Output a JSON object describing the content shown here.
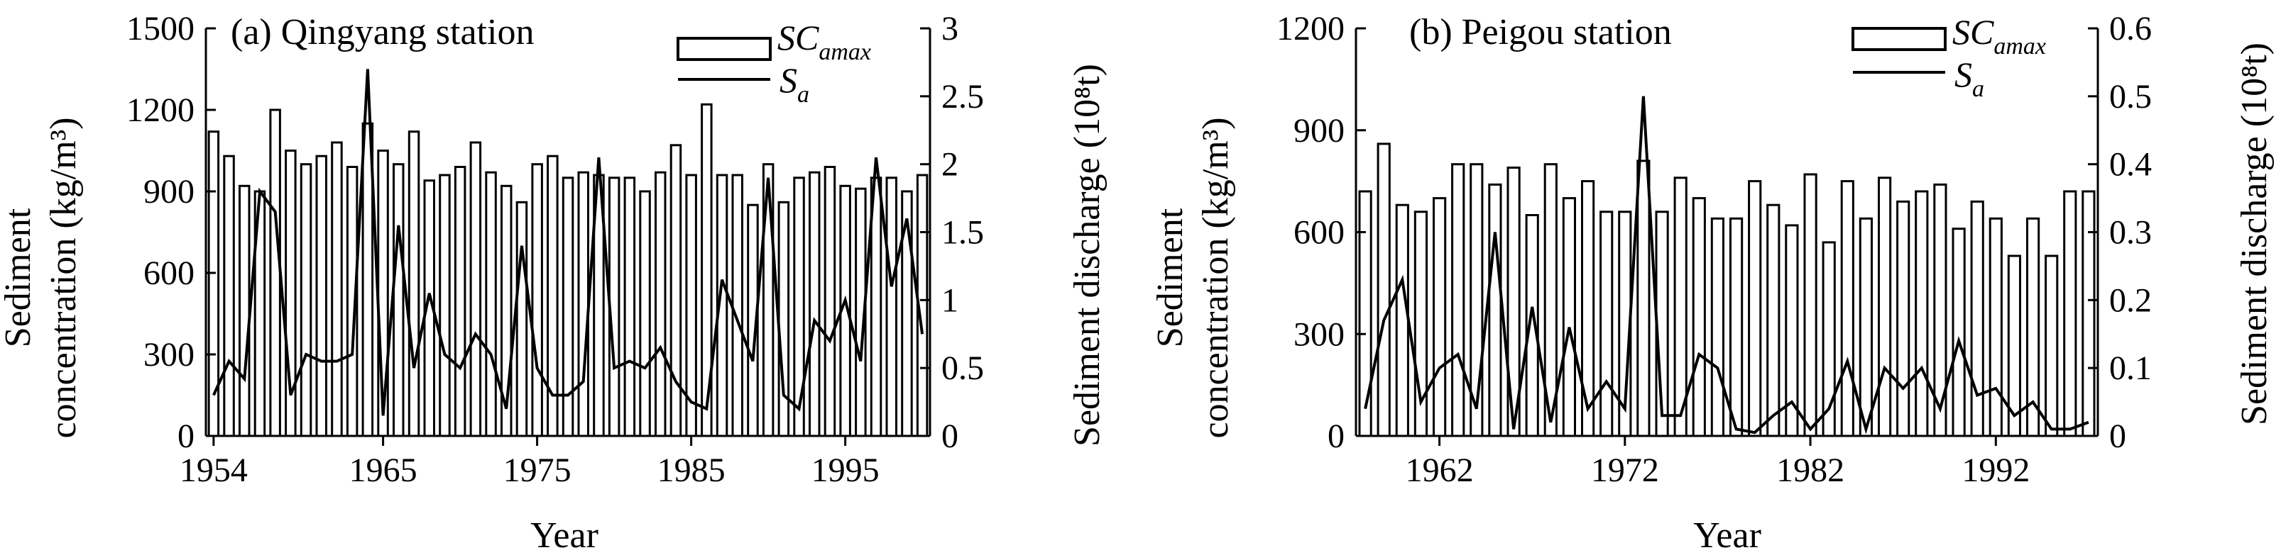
{
  "chart_data": [
    {
      "type": "bar",
      "title": "(a) Qingyang station",
      "xlabel": "Year",
      "ylabel_left": [
        "Sediment",
        "concentration (kg/m³)"
      ],
      "ylabel_right": "Sediment discharge (10⁸t)",
      "ylim_left": [
        0,
        1500
      ],
      "ylim_right": [
        0,
        3
      ],
      "yticks_left": [
        "0",
        "300",
        "600",
        "900",
        "1200",
        "1500"
      ],
      "yticks_right": [
        "0",
        "0.5",
        "1",
        "1.5",
        "2",
        "2.5",
        "3"
      ],
      "xticks": [
        "1954",
        "1965",
        "1975",
        "1985",
        "1995"
      ],
      "xtick_years": [
        1954,
        1965,
        1975,
        1985,
        1995
      ],
      "legend": [
        {
          "label": "SC",
          "sub": "amax",
          "kind": "bar"
        },
        {
          "label": "S",
          "sub": "a",
          "kind": "line"
        }
      ],
      "years": [
        1954,
        1955,
        1956,
        1957,
        1958,
        1959,
        1960,
        1961,
        1962,
        1963,
        1964,
        1965,
        1966,
        1967,
        1968,
        1969,
        1970,
        1971,
        1972,
        1973,
        1974,
        1975,
        1976,
        1977,
        1978,
        1979,
        1980,
        1981,
        1982,
        1983,
        1984,
        1985,
        1986,
        1987,
        1988,
        1989,
        1990,
        1991,
        1992,
        1993,
        1994,
        1995,
        1996,
        1997,
        1998,
        1999,
        2000
      ],
      "series": [
        {
          "name": "SCamax",
          "kind": "bar",
          "values": [
            1120,
            1030,
            920,
            900,
            1200,
            1050,
            1000,
            1030,
            1080,
            990,
            1150,
            1050,
            1000,
            1120,
            940,
            960,
            990,
            1080,
            970,
            920,
            860,
            1000,
            1030,
            950,
            970,
            960,
            950,
            950,
            900,
            970,
            1070,
            960,
            1220,
            960,
            960,
            850,
            1000,
            860,
            950,
            970,
            990,
            920,
            910,
            950,
            950,
            900,
            960
          ]
        },
        {
          "name": "Sa",
          "kind": "line",
          "values": [
            0.3,
            0.55,
            0.42,
            1.8,
            1.65,
            0.3,
            0.6,
            0.55,
            0.55,
            0.6,
            2.7,
            0.15,
            1.55,
            0.5,
            1.05,
            0.6,
            0.5,
            0.75,
            0.6,
            0.2,
            1.4,
            0.5,
            0.3,
            0.3,
            0.4,
            2.05,
            0.5,
            0.55,
            0.5,
            0.65,
            0.4,
            0.25,
            0.2,
            1.15,
            0.85,
            0.55,
            1.9,
            0.3,
            0.2,
            0.85,
            0.7,
            1.0,
            0.55,
            2.05,
            1.1,
            1.6,
            0.75
          ]
        }
      ]
    },
    {
      "type": "bar",
      "title": "(b) Peigou station",
      "xlabel": "Year",
      "ylabel_left": [
        "Sediment",
        "concentration (kg/m³)"
      ],
      "ylabel_right": "Sediment discharge (10⁸t)",
      "ylim_left": [
        0,
        1200
      ],
      "ylim_right": [
        0,
        0.6
      ],
      "yticks_left": [
        "0",
        "300",
        "600",
        "900",
        "1200"
      ],
      "yticks_right": [
        "0",
        "0.1",
        "0.2",
        "0.3",
        "0.4",
        "0.5",
        "0.6"
      ],
      "xticks": [
        "1962",
        "1972",
        "1982",
        "1992"
      ],
      "xtick_years": [
        1962,
        1972,
        1982,
        1992
      ],
      "legend": [
        {
          "label": "SC",
          "sub": "amax",
          "kind": "bar"
        },
        {
          "label": "S",
          "sub": "a",
          "kind": "line"
        }
      ],
      "years": [
        1958,
        1959,
        1960,
        1961,
        1962,
        1963,
        1964,
        1965,
        1966,
        1967,
        1968,
        1969,
        1970,
        1971,
        1972,
        1973,
        1974,
        1975,
        1976,
        1977,
        1978,
        1979,
        1980,
        1981,
        1982,
        1983,
        1984,
        1985,
        1986,
        1987,
        1988,
        1989,
        1990,
        1991,
        1992,
        1993,
        1994,
        1995,
        1996,
        1997
      ],
      "series": [
        {
          "name": "SCamax",
          "kind": "bar",
          "values": [
            720,
            860,
            680,
            660,
            700,
            800,
            800,
            740,
            790,
            650,
            800,
            700,
            750,
            660,
            660,
            810,
            660,
            760,
            700,
            640,
            640,
            750,
            680,
            620,
            770,
            570,
            750,
            640,
            760,
            690,
            720,
            740,
            610,
            690,
            640,
            530,
            640,
            530,
            720,
            720
          ]
        },
        {
          "name": "Sa",
          "kind": "line",
          "values": [
            0.04,
            0.17,
            0.23,
            0.05,
            0.1,
            0.12,
            0.04,
            0.3,
            0.01,
            0.19,
            0.02,
            0.16,
            0.04,
            0.08,
            0.04,
            0.5,
            0.03,
            0.03,
            0.12,
            0.1,
            0.01,
            0.005,
            0.03,
            0.05,
            0.01,
            0.04,
            0.11,
            0.01,
            0.1,
            0.07,
            0.1,
            0.04,
            0.14,
            0.06,
            0.07,
            0.03,
            0.05,
            0.01,
            0.01,
            0.02
          ]
        }
      ]
    }
  ]
}
